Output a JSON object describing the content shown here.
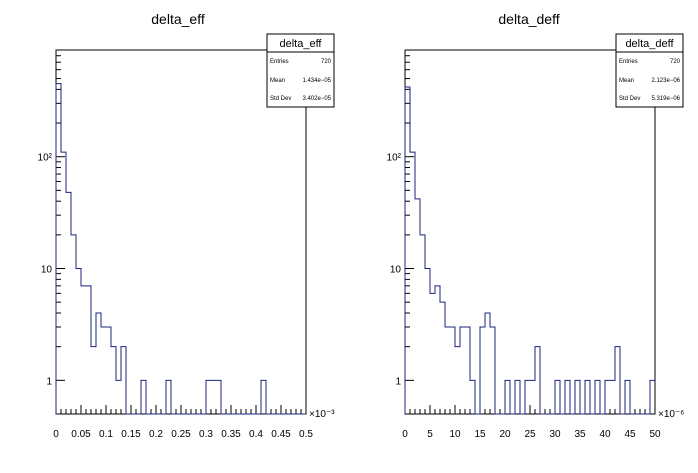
{
  "chart_data": [
    {
      "type": "bar",
      "title": "delta_eff",
      "xlabel": "",
      "ylabel": "",
      "yscale": "log",
      "xlim": [
        0,
        0.5
      ],
      "ylim": [
        0.5,
        900
      ],
      "x_exponent": "×10⁻³",
      "x_ticks": [
        "0",
        "0.05",
        "0.1",
        "0.15",
        "0.2",
        "0.25",
        "0.3",
        "0.35",
        "0.4",
        "0.45",
        "0.5"
      ],
      "y_ticks": [
        "1",
        "10",
        "10²"
      ],
      "bin_width": 0.01,
      "bin_starts": [
        0,
        0.01,
        0.02,
        0.03,
        0.04,
        0.05,
        0.06,
        0.07,
        0.08,
        0.09,
        0.1,
        0.11,
        0.12,
        0.13,
        0.14,
        0.15,
        0.16,
        0.17,
        0.18,
        0.19,
        0.2,
        0.21,
        0.22,
        0.23,
        0.24,
        0.25,
        0.26,
        0.27,
        0.28,
        0.29,
        0.3,
        0.31,
        0.32,
        0.33,
        0.34,
        0.35,
        0.36,
        0.37,
        0.38,
        0.39,
        0.4,
        0.41,
        0.42,
        0.43,
        0.44,
        0.45,
        0.46,
        0.47,
        0.48,
        0.49
      ],
      "values": [
        450,
        110,
        48,
        20,
        10,
        7,
        7,
        2,
        4,
        3,
        3,
        2,
        1,
        2,
        0,
        0,
        0,
        1,
        0,
        0,
        0,
        0,
        1,
        0,
        0,
        0,
        0,
        0,
        0,
        0,
        1,
        1,
        1,
        0,
        0,
        0,
        0,
        0,
        0,
        0,
        0,
        1,
        0,
        0,
        0,
        0,
        0,
        0,
        0,
        0
      ],
      "stats": {
        "name": "delta_eff",
        "entries_label": "Entries",
        "entries": "720",
        "mean_label": "Mean",
        "mean": "1.434e−05",
        "std_label": "Std Dev",
        "std": "3.402e−05"
      },
      "line_color": "#1a237e",
      "grid": false
    },
    {
      "type": "bar",
      "title": "delta_deff",
      "xlabel": "",
      "ylabel": "",
      "yscale": "log",
      "xlim": [
        0,
        50
      ],
      "ylim": [
        0.5,
        900
      ],
      "x_exponent": "×10⁻⁶",
      "x_ticks": [
        "0",
        "5",
        "10",
        "15",
        "20",
        "25",
        "30",
        "35",
        "40",
        "45",
        "50"
      ],
      "y_ticks": [
        "1",
        "10",
        "10²"
      ],
      "bin_width": 1,
      "bin_starts": [
        0,
        1,
        2,
        3,
        4,
        5,
        6,
        7,
        8,
        9,
        10,
        11,
        12,
        13,
        14,
        15,
        16,
        17,
        18,
        19,
        20,
        21,
        22,
        23,
        24,
        25,
        26,
        27,
        28,
        29,
        30,
        31,
        32,
        33,
        34,
        35,
        36,
        37,
        38,
        39,
        40,
        41,
        42,
        43,
        44,
        45,
        46,
        47,
        48,
        49
      ],
      "values": [
        420,
        110,
        42,
        20,
        10,
        6,
        7,
        5,
        3,
        3,
        2,
        3,
        3,
        1,
        0,
        3,
        4,
        3,
        0,
        0,
        1,
        0,
        1,
        0,
        1,
        1,
        2,
        0,
        0,
        0,
        1,
        0,
        1,
        0,
        1,
        0,
        1,
        0,
        1,
        0,
        1,
        1,
        2,
        0,
        1,
        0,
        0,
        0,
        0,
        1
      ],
      "stats": {
        "name": "delta_deff",
        "entries_label": "Entries",
        "entries": "720",
        "mean_label": "Mean",
        "mean": "2.123e−06",
        "std_label": "Std Dev",
        "std": "5.319e−06"
      },
      "line_color": "#1a237e",
      "grid": false
    }
  ]
}
